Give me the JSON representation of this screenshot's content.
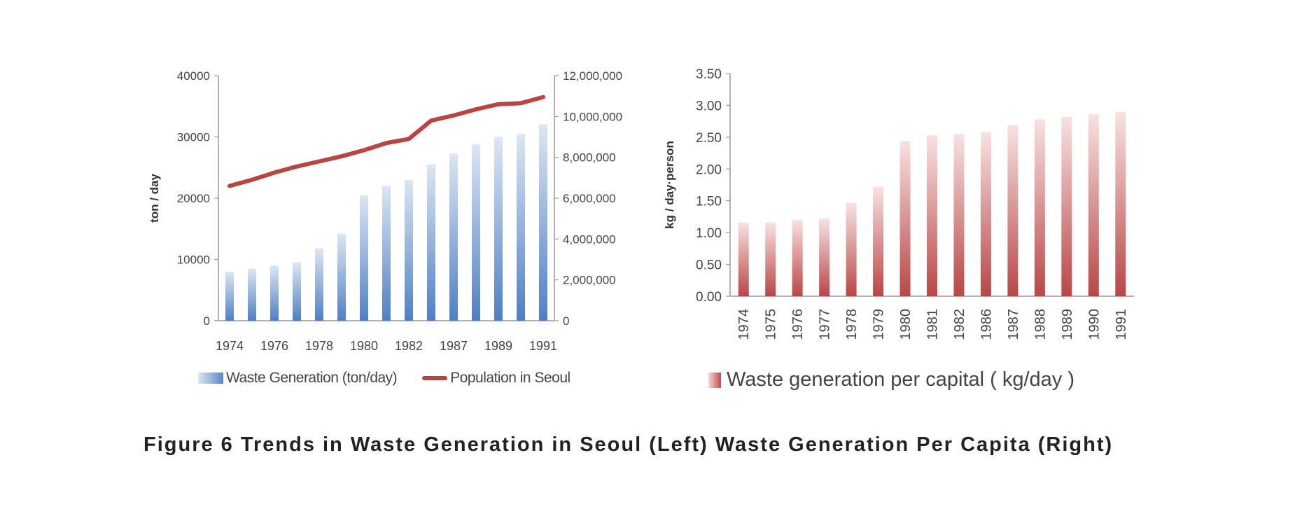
{
  "chart_data": [
    {
      "type": "bar",
      "ylabel": "ton / day",
      "ylim": [
        0,
        40000
      ],
      "yticks": [
        "0",
        "10000",
        "20000",
        "30000",
        "40000"
      ],
      "y2lim": [
        0,
        12000000
      ],
      "y2ticks": [
        "0",
        "2,000,000",
        "4,000,000",
        "6,000,000",
        "8,000,000",
        "10,000,000",
        "12,000,000"
      ],
      "categories": [
        "1974",
        "1975",
        "1976",
        "1977",
        "1978",
        "1979",
        "1980",
        "1981",
        "1982",
        "1986",
        "1987",
        "1988",
        "1989",
        "1990",
        "1991"
      ],
      "xticks_shown": [
        "1974",
        "1976",
        "1978",
        "1980",
        "1982",
        "1987",
        "1989",
        "1991"
      ],
      "series": [
        {
          "name": "Waste  Generation (ton/day)",
          "type": "bar",
          "axis": "left",
          "color": "#5b86c5",
          "values": [
            8000,
            8500,
            9000,
            9500,
            11800,
            14200,
            20500,
            22000,
            23000,
            25500,
            27300,
            28800,
            30000,
            30500,
            32000
          ]
        },
        {
          "name": "Population in Seoul",
          "type": "line",
          "axis": "right",
          "color": "#b8453f",
          "values": [
            6600000,
            6900000,
            7250000,
            7550000,
            7800000,
            8050000,
            8350000,
            8700000,
            8900000,
            9800000,
            10050000,
            10350000,
            10600000,
            10650000,
            10950000
          ]
        }
      ],
      "legend": "bottom"
    },
    {
      "type": "bar",
      "ylabel": "kg / day·person",
      "ylim": [
        0,
        3.5
      ],
      "yticks": [
        "0.00",
        "0.50",
        "1.00",
        "1.50",
        "2.00",
        "2.50",
        "3.00",
        "3.50"
      ],
      "categories": [
        "1974",
        "1975",
        "1976",
        "1977",
        "1978",
        "1979",
        "1980",
        "1981",
        "1982",
        "1986",
        "1987",
        "1988",
        "1989",
        "1990",
        "1991"
      ],
      "series": [
        {
          "name": "Waste generation per capital ( kg/day )",
          "color": "#bd4c4c",
          "values": [
            1.16,
            1.16,
            1.2,
            1.22,
            1.47,
            1.72,
            2.44,
            2.53,
            2.55,
            2.58,
            2.69,
            2.78,
            2.82,
            2.86,
            2.9
          ]
        }
      ],
      "legend": "bottom"
    }
  ],
  "legend": {
    "left_bar_label": "Waste  Generation (ton/day)",
    "left_line_label": "Population in Seoul",
    "right_bar_label": "Waste generation per capital ( kg/day )"
  },
  "caption": "Figure 6 Trends in Waste Generation in Seoul (Left) Waste Generation Per Capita (Right)"
}
